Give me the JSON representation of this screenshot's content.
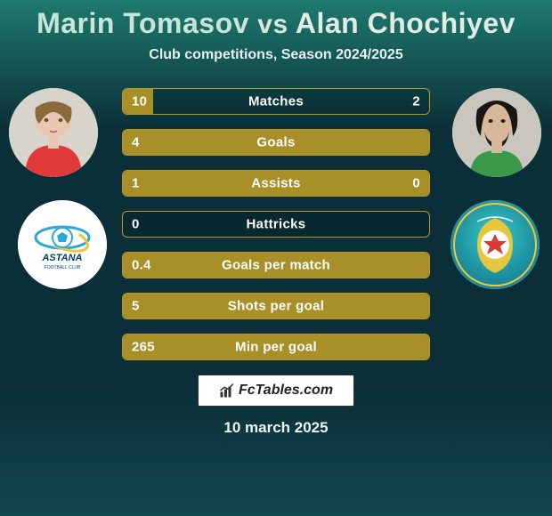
{
  "title": {
    "player1": "Marin Tomasov",
    "vs": "vs",
    "player2": "Alan Chochiyev"
  },
  "subtitle": "Club competitions, Season 2024/2025",
  "colors": {
    "bar_border": "#b89a2a",
    "bar_fill": "#a98f27",
    "bg_top": "#1e7a6e",
    "bg_mid": "#0a2f38",
    "bg_bottom": "#134750",
    "text": "#ffffff"
  },
  "stats": [
    {
      "label": "Matches",
      "v1": "10",
      "v2": "2",
      "fill_pct": 10
    },
    {
      "label": "Goals",
      "v1": "4",
      "v2": "",
      "fill_pct": 100
    },
    {
      "label": "Assists",
      "v1": "1",
      "v2": "0",
      "fill_pct": 100
    },
    {
      "label": "Hattricks",
      "v1": "0",
      "v2": "",
      "fill_pct": 0
    },
    {
      "label": "Goals per match",
      "v1": "0.4",
      "v2": "",
      "fill_pct": 100
    },
    {
      "label": "Shots per goal",
      "v1": "5",
      "v2": "",
      "fill_pct": 100
    },
    {
      "label": "Min per goal",
      "v1": "265",
      "v2": "",
      "fill_pct": 100
    }
  ],
  "footer": {
    "site": "FcTables.com",
    "date": "10 march 2025"
  },
  "images": {
    "player1_alt": "player-1-photo",
    "player2_alt": "player-2-photo",
    "club1_alt": "astana-logo",
    "club2_alt": "club-2-logo"
  }
}
